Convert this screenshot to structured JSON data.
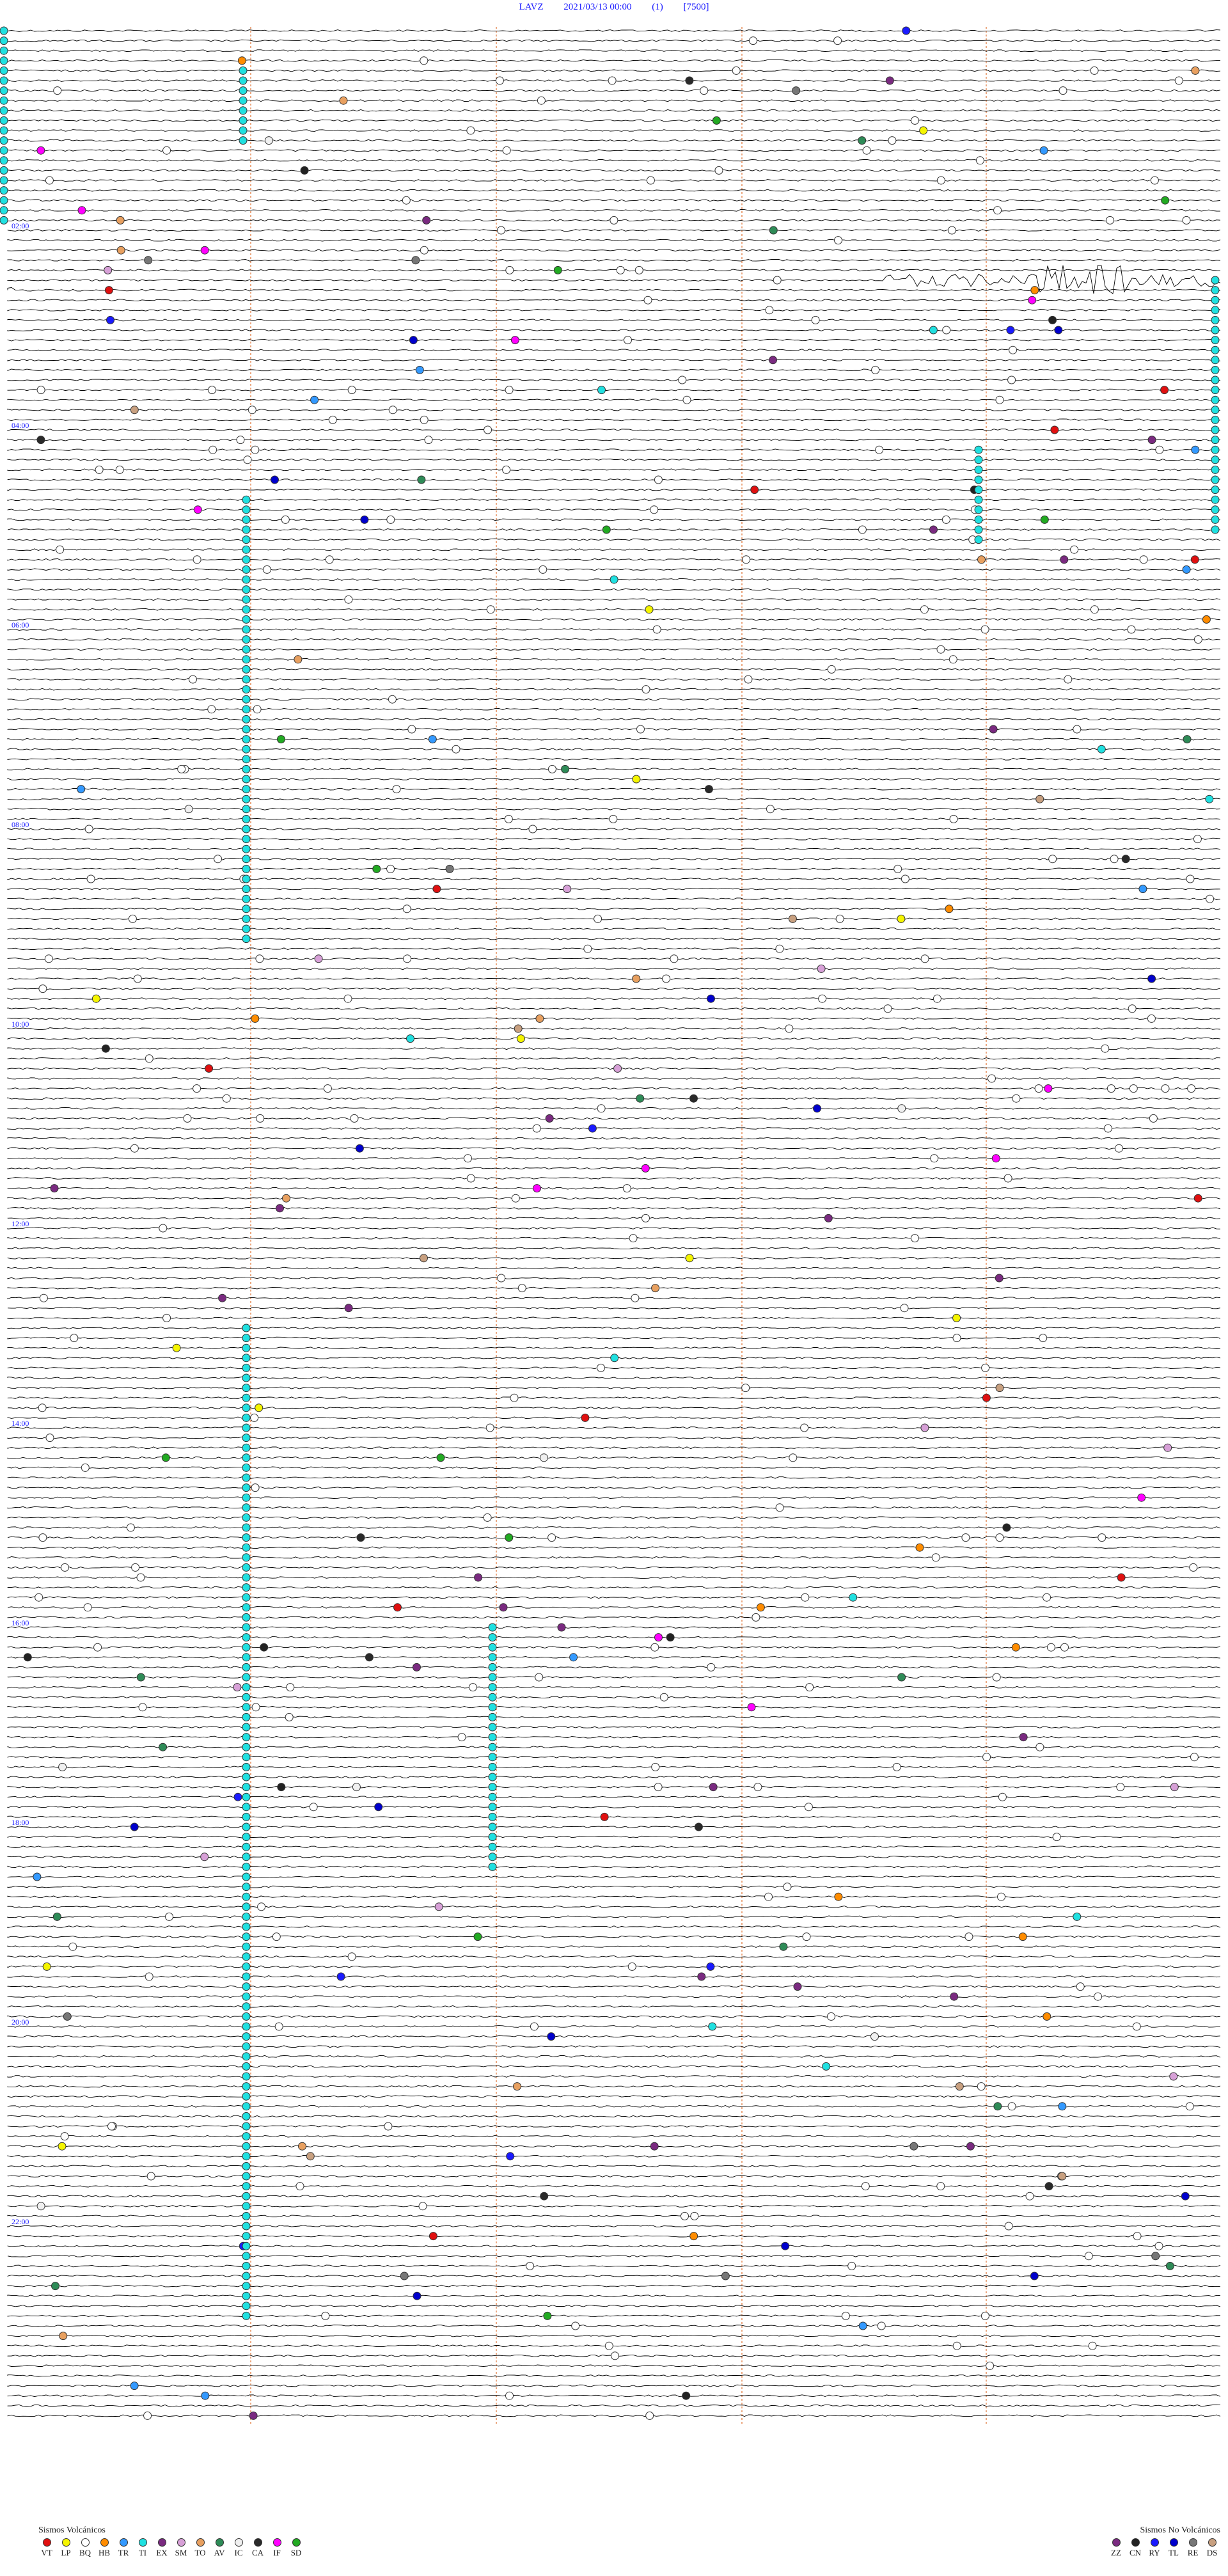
{
  "header": {
    "station": "LAVZ",
    "datetime": "2021/03/13 00:00",
    "component": "(1)",
    "scale": "[7500]"
  },
  "hour_labels": [
    "02:00",
    "04:00",
    "06:00",
    "08:00",
    "10:00",
    "12:00",
    "14:00",
    "16:00",
    "18:00",
    "20:00",
    "22:00"
  ],
  "legend_volcanic": {
    "title": "Sismos Volcánicos",
    "items": [
      {
        "code": "VT",
        "color": "#e01010"
      },
      {
        "code": "LP",
        "color": "#f5f500"
      },
      {
        "code": "BQ",
        "color": "#ffffff"
      },
      {
        "code": "HB",
        "color": "#ff8c00"
      },
      {
        "code": "TR",
        "color": "#3399ff"
      },
      {
        "code": "TI",
        "color": "#20e0e0"
      },
      {
        "code": "EX",
        "color": "#7a2a80"
      },
      {
        "code": "SM",
        "color": "#d7a0d7"
      },
      {
        "code": "TO",
        "color": "#e8a060"
      },
      {
        "code": "AV",
        "color": "#2e8b57"
      },
      {
        "code": "IC",
        "color": "#f0f0f0"
      },
      {
        "code": "CA",
        "color": "#2a2a2a"
      },
      {
        "code": "IF",
        "color": "#ff00ff"
      },
      {
        "code": "SD",
        "color": "#22aa22"
      }
    ]
  },
  "legend_nonvolcanic": {
    "title": "Sismos No Volcánicos",
    "items": [
      {
        "code": "ZZ",
        "color": "#7a2a80"
      },
      {
        "code": "CN",
        "color": "#222222"
      },
      {
        "code": "RY",
        "color": "#1a1aff"
      },
      {
        "code": "TL",
        "color": "#0000cc"
      },
      {
        "code": "RE",
        "color": "#777777"
      },
      {
        "code": "DS",
        "color": "#c8a080"
      }
    ]
  },
  "colors": {
    "trace": "#000000",
    "minute_gridline": "#e07030",
    "header_text": "#1a1aff",
    "hour_label": "#1a1aff"
  }
}
